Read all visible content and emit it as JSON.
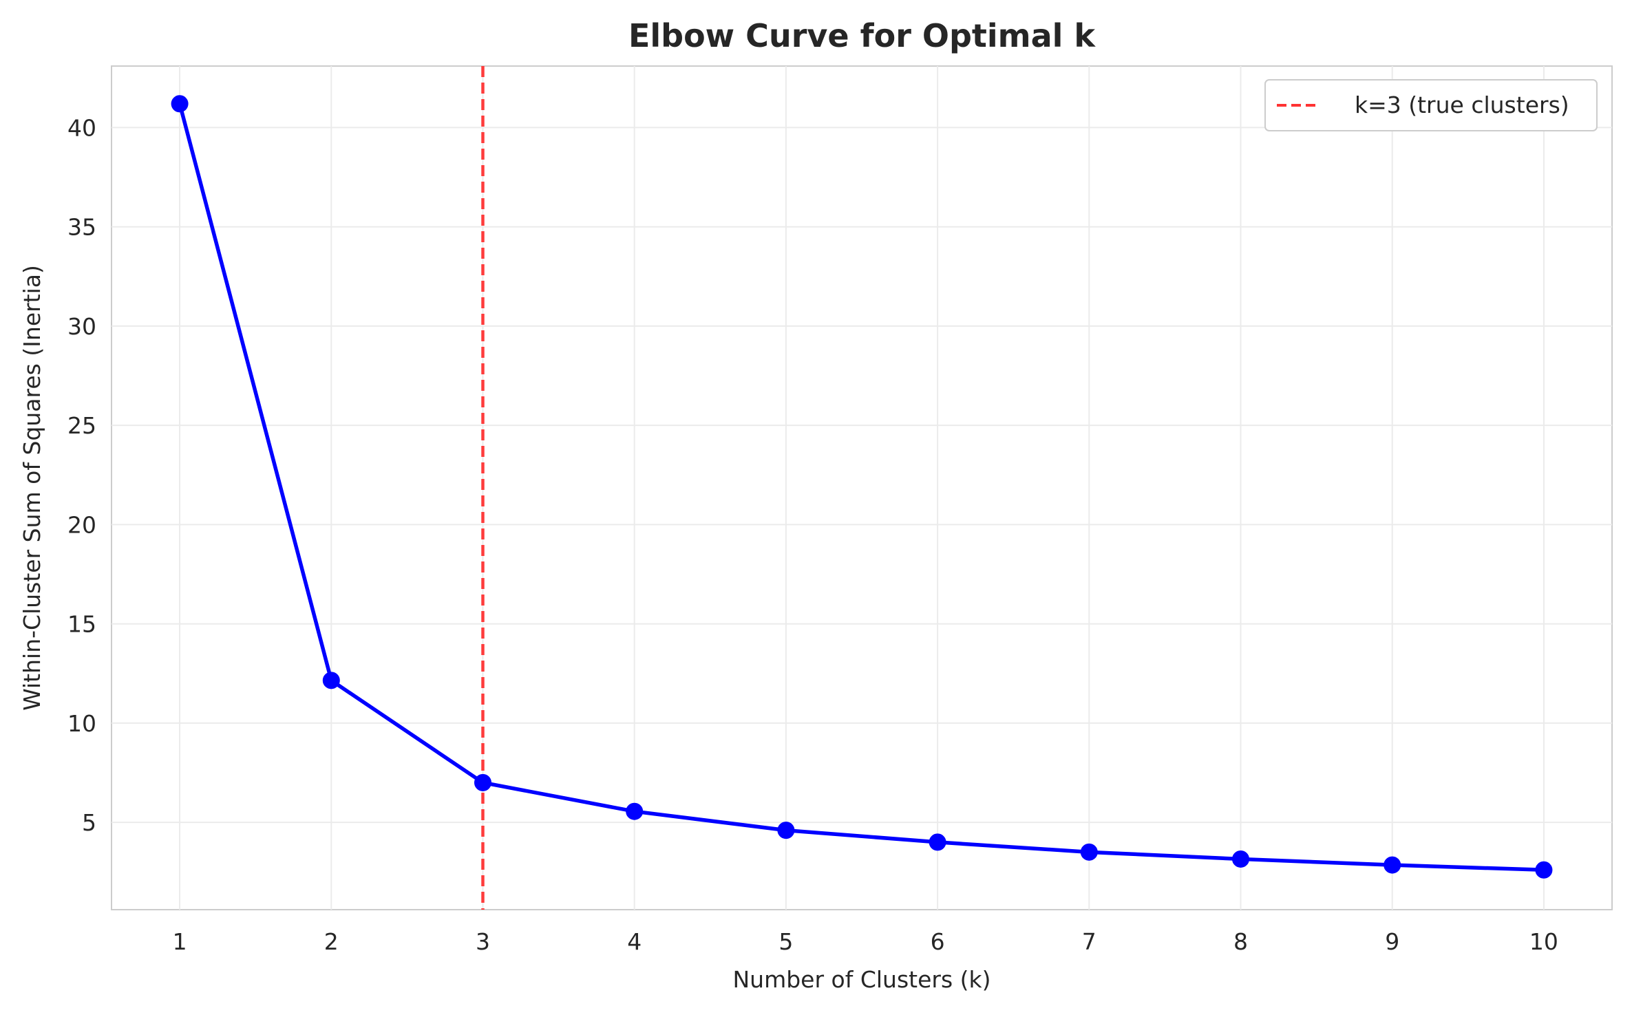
{
  "chart_data": {
    "type": "line",
    "title": "Elbow Curve for Optimal k",
    "xlabel": "Number of Clusters (k)",
    "ylabel": "Within-Cluster Sum of Squares (Inertia)",
    "x": [
      1,
      2,
      3,
      4,
      5,
      6,
      7,
      8,
      9,
      10
    ],
    "xticks": [
      "1",
      "2",
      "3",
      "4",
      "5",
      "6",
      "7",
      "8",
      "9",
      "10"
    ],
    "yticks": [
      5,
      10,
      15,
      20,
      25,
      30,
      35,
      40
    ],
    "xlim": [
      0.55,
      10.45
    ],
    "ylim": [
      0.6,
      43.1
    ],
    "grid": true,
    "legend_position": "top-right",
    "series": [
      {
        "values": [
          41.2,
          12.15,
          7.0,
          5.55,
          4.6,
          4.0,
          3.5,
          3.15,
          2.85,
          2.6
        ],
        "color": "#0000ff",
        "marker": "circle"
      }
    ],
    "reference_lines": [
      {
        "x": 3,
        "label": "k=3 (true clusters)",
        "color": "#ff3333",
        "style": "dashed"
      }
    ],
    "colors": {
      "line": "#0000ff",
      "reference": "#ff3333",
      "grid": "#ebebeb",
      "axes": "#cccccc",
      "text": "#262626"
    }
  }
}
